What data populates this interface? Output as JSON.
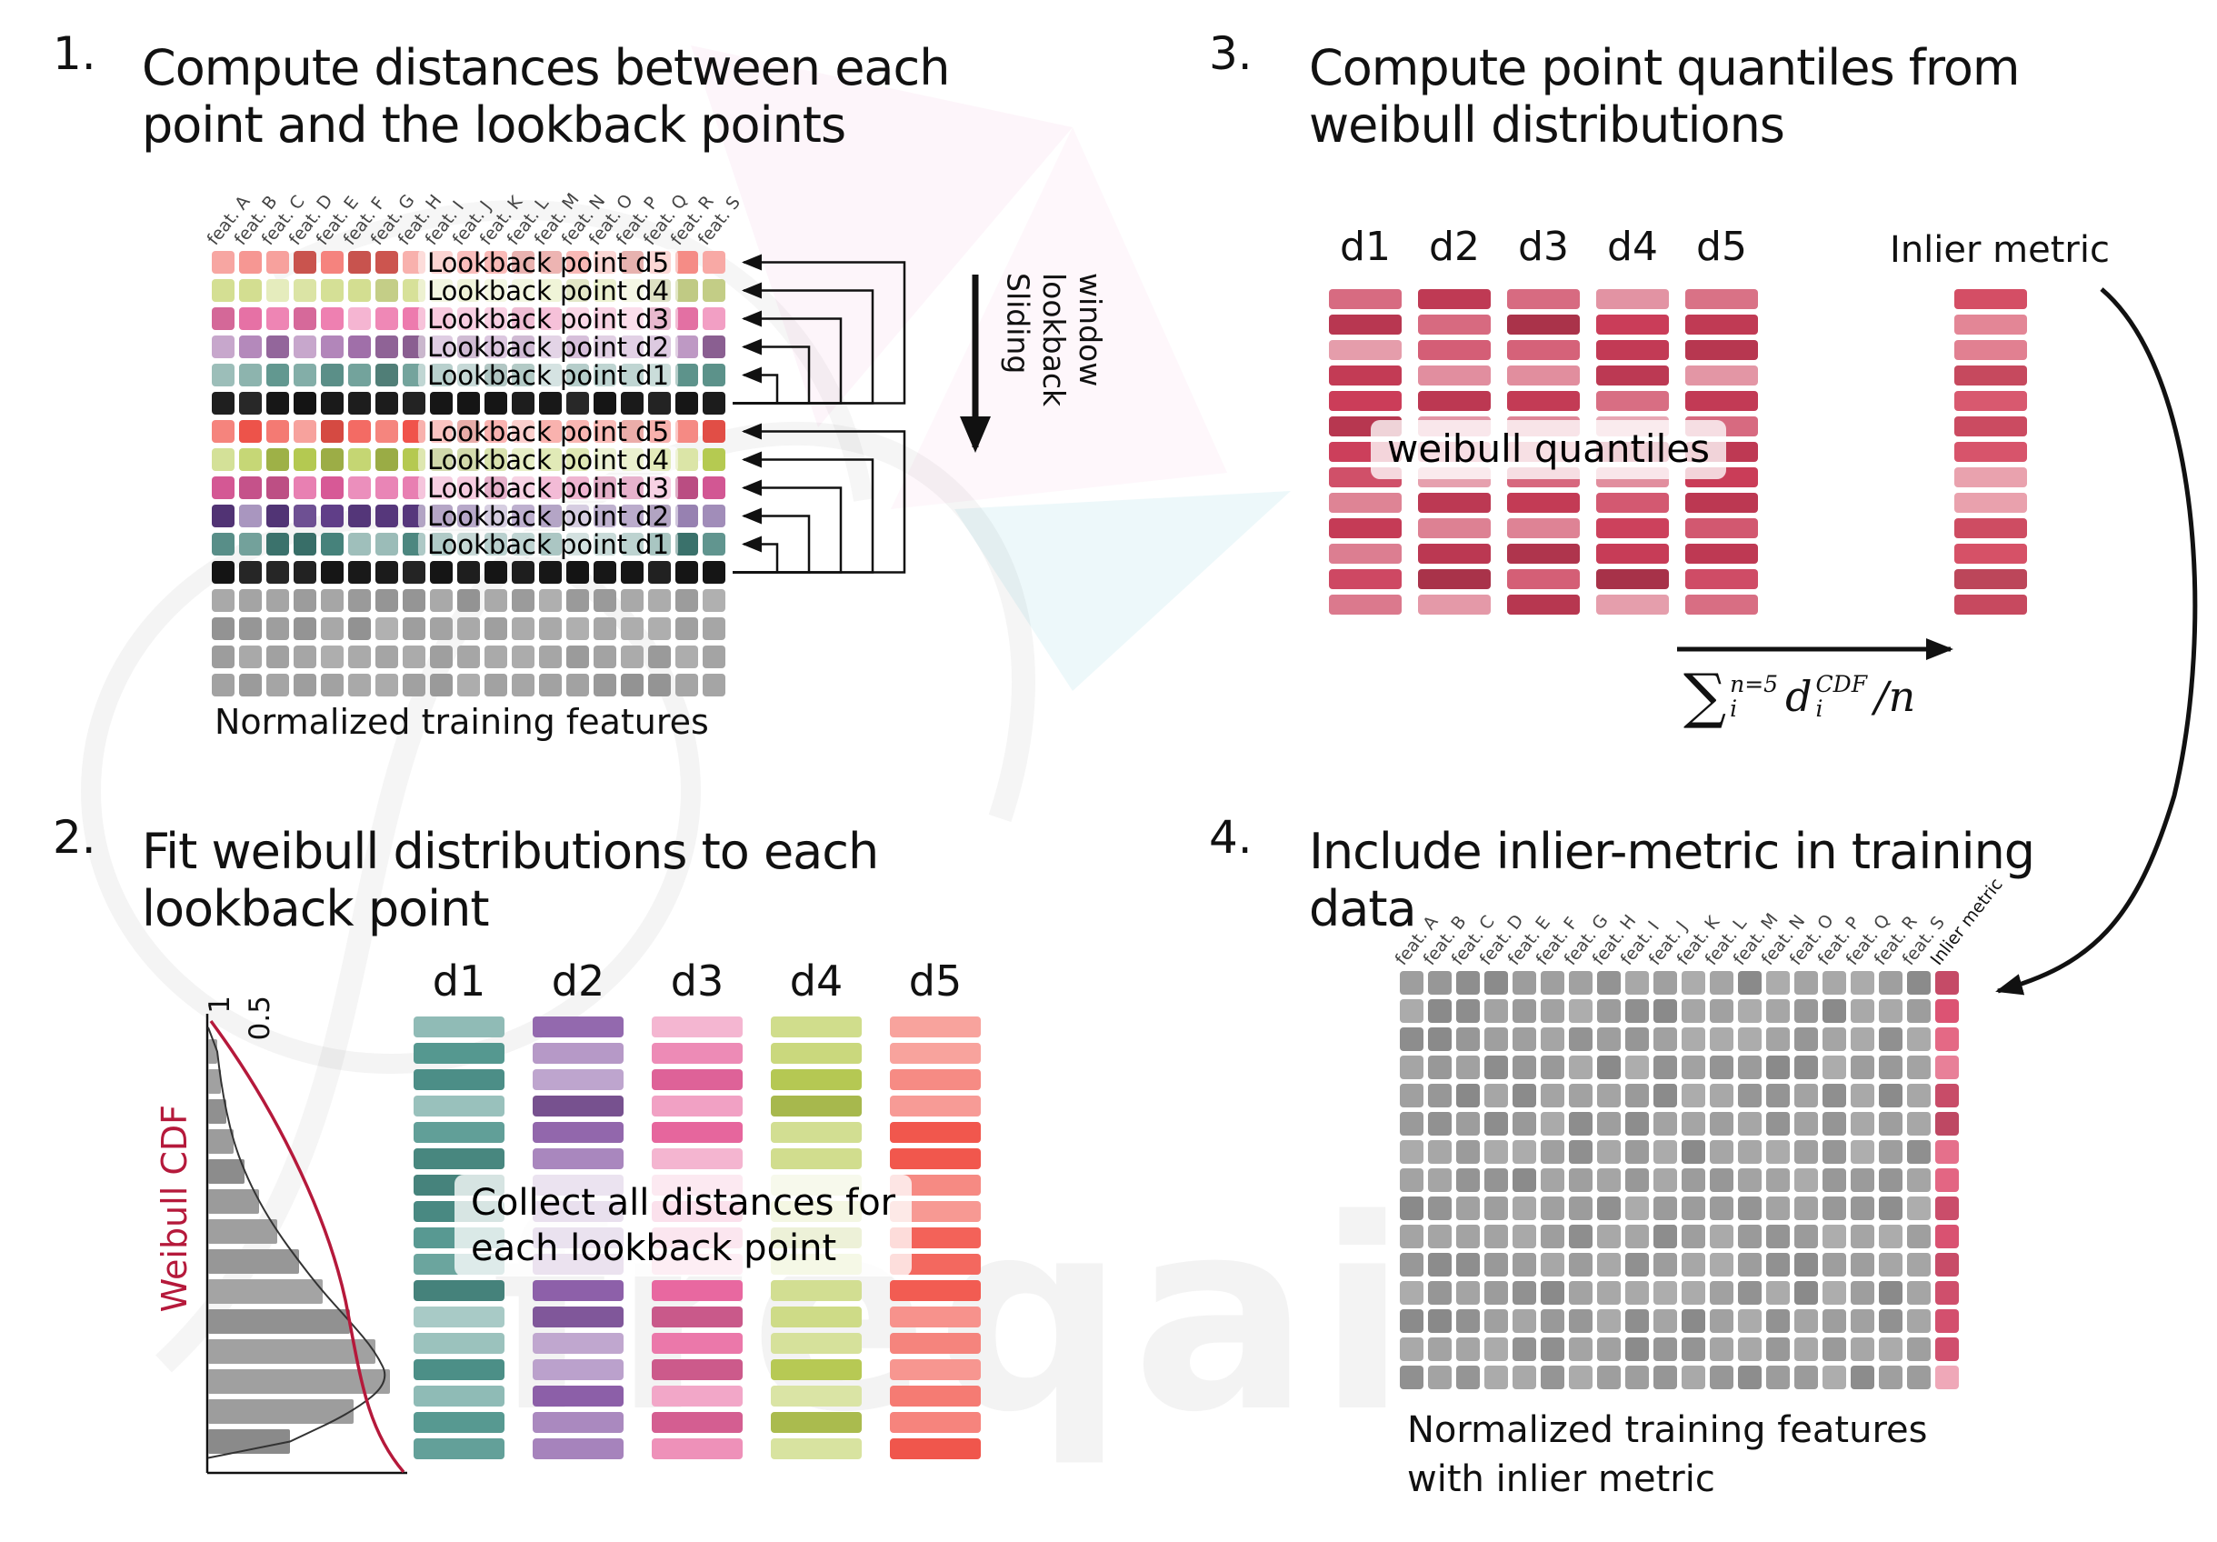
{
  "watermark": {
    "text": "freqai"
  },
  "panel1": {
    "number": "1.",
    "title_lines": [
      "Compute distances between each",
      "point and the lookback points"
    ],
    "feature_headers": [
      "feat. A",
      "feat. B",
      "feat. C",
      "feat. D",
      "feat. E",
      "feat. F",
      "feat. G",
      "feat. H",
      "feat. I",
      "feat. J",
      "feat. K",
      "feat. L",
      "feat. M",
      "feat. N",
      "feat. O",
      "feat. P",
      "feat. Q",
      "feat. R",
      "feat. S"
    ],
    "rows": [
      {
        "type": "lookback",
        "label": "Lookback point d5",
        "color": "#f2655e"
      },
      {
        "type": "lookback",
        "label": "Lookback point d4",
        "color": "#d4df92"
      },
      {
        "type": "lookback",
        "label": "Lookback point d3",
        "color": "#ec74aa"
      },
      {
        "type": "lookback",
        "label": "Lookback point d2",
        "color": "#a572ae"
      },
      {
        "type": "lookback",
        "label": "Lookback point d1",
        "color": "#5f968e"
      },
      {
        "type": "current",
        "color": "#161616"
      },
      {
        "type": "lookback",
        "label": "Lookback point d5",
        "color": "#f1544b"
      },
      {
        "type": "lookback",
        "label": "Lookback point d4",
        "color": "#b7cc52"
      },
      {
        "type": "lookback",
        "label": "Lookback point d3",
        "color": "#e25e9e"
      },
      {
        "type": "lookback",
        "label": "Lookback point d2",
        "color": "#5e3c87"
      },
      {
        "type": "lookback",
        "label": "Lookback point d1",
        "color": "#417f78"
      },
      {
        "type": "current",
        "color": "#161616"
      },
      {
        "type": "plain",
        "color": "#a2a2a2"
      },
      {
        "type": "plain",
        "color": "#a2a2a2"
      },
      {
        "type": "plain",
        "color": "#a2a2a2"
      },
      {
        "type": "plain",
        "color": "#a2a2a2"
      }
    ],
    "caption": "Normalized training features",
    "sliding_label_lines": [
      "Sliding",
      "lookback",
      "window"
    ]
  },
  "panel2": {
    "number": "2.",
    "title_lines": [
      "Fit weibull distributions to each",
      "lookback point"
    ],
    "hist": {
      "tick_labels": [
        "1",
        "0.5"
      ],
      "cdf_label": "Weibull CDF",
      "cdf_color": "#b5193b",
      "bar_color": "#8a8a8a",
      "bar_values": [
        0.05,
        0.07,
        0.1,
        0.14,
        0.2,
        0.28,
        0.38,
        0.5,
        0.63,
        0.78,
        0.92,
        1.0,
        0.8,
        0.45
      ]
    },
    "columns": [
      {
        "label": "d1",
        "color": "#4f948c"
      },
      {
        "label": "d2",
        "color": "#8c5fa8"
      },
      {
        "label": "d3",
        "color": "#e8679f"
      },
      {
        "label": "d4",
        "color": "#b9cc55"
      },
      {
        "label": "d5",
        "color": "#f2574d"
      }
    ],
    "overlay_lines": [
      "Collect all distances for",
      "each lookback point"
    ]
  },
  "panel3": {
    "number": "3.",
    "title_lines": [
      "Compute point quantiles from",
      "weibull distributions"
    ],
    "column_labels": [
      "d1",
      "d2",
      "d3",
      "d4",
      "d5"
    ],
    "bar_color": "#cb3d59",
    "overlay": "weibull quantiles",
    "inlier_label": "Inlier metric",
    "inlier_bar_color": "#d64f66",
    "formula": {
      "sum": "∑",
      "sum_sup": "n=5",
      "sum_sub": "i",
      "term": "d",
      "term_sup": "CDF",
      "term_sub": "i",
      "tail": "/n"
    }
  },
  "panel4": {
    "number": "4.",
    "title_lines": [
      "Include inlier-metric in training",
      "data"
    ],
    "feature_headers": [
      "feat. A",
      "feat. B",
      "feat. C",
      "feat. D",
      "feat. E",
      "feat. F",
      "feat. G",
      "feat. H",
      "feat. I",
      "feat. J",
      "feat. K",
      "feat. L",
      "feat. M",
      "feat. N",
      "feat. O",
      "feat. P",
      "feat. Q",
      "feat. R",
      "feat. S"
    ],
    "inlier_header": "Inlier metric",
    "cell_color": "#9c9c9c",
    "inlier_color": "#e05575",
    "caption_lines": [
      "Normalized training features",
      "with inlier metric"
    ]
  }
}
